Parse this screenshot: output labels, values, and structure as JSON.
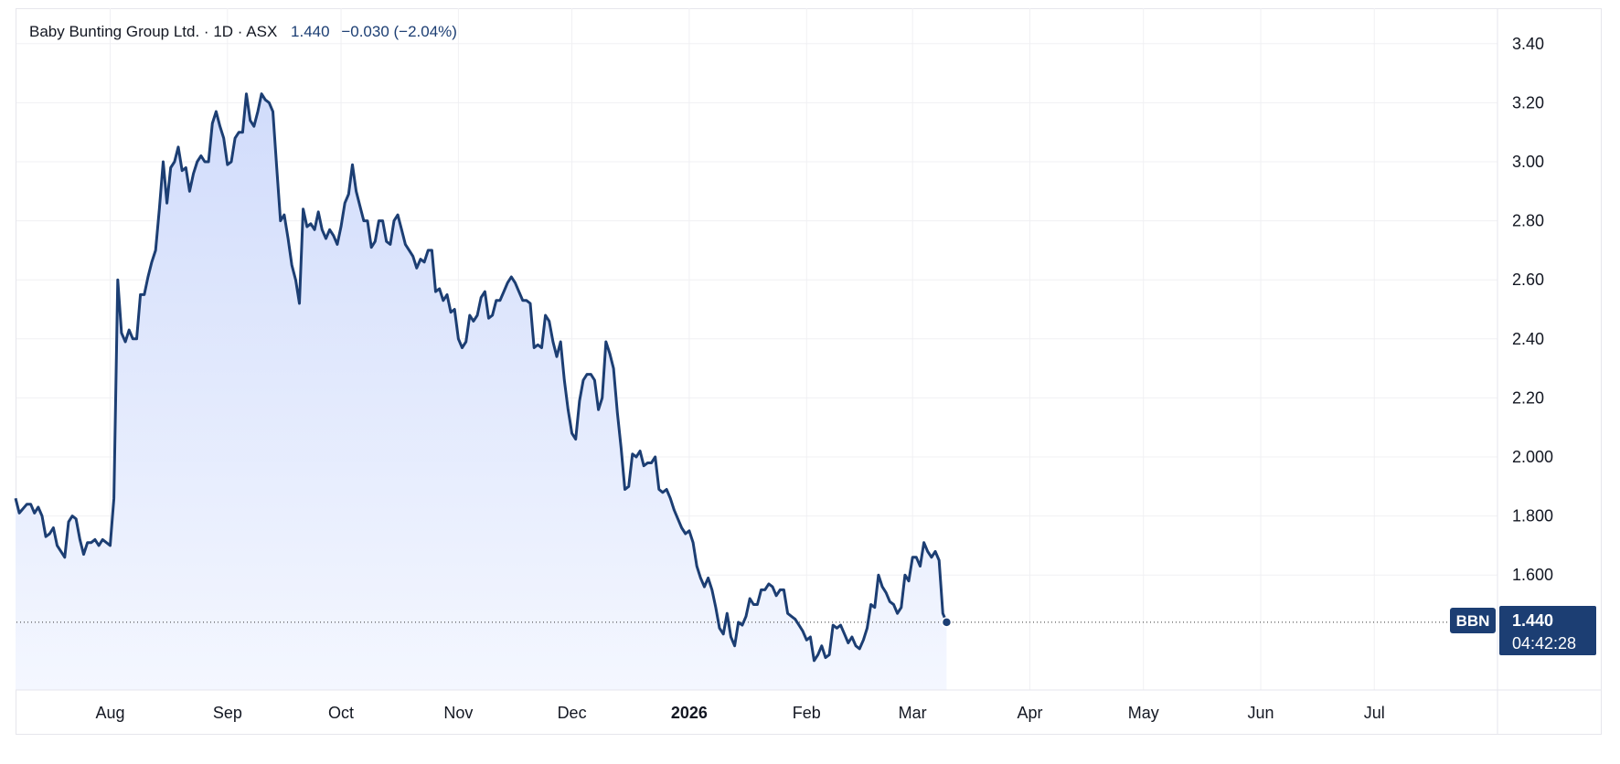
{
  "header": {
    "symbol_name": "Baby Bunting Group Ltd.",
    "interval": "1D",
    "exchange": "ASX",
    "separator": "·",
    "last_price": "1.440",
    "change": "−0.030 (−2.04%)"
  },
  "price_tag": {
    "ticker": "BBN",
    "price": "1.440",
    "countdown": "04:42:28"
  },
  "colors": {
    "line": "#1c3e73",
    "fill_top": "#d1dcfb",
    "fill_bottom": "#f4f7ff",
    "tag_bg": "#1c3e73"
  },
  "chart_data": {
    "type": "area",
    "title": "Baby Bunting Group Ltd. · 1D · ASX",
    "xlabel": "",
    "ylabel": "",
    "ylim": [
      1.25,
      3.45
    ],
    "y_ticks": [
      {
        "value": 3.4,
        "label": "3.40"
      },
      {
        "value": 3.2,
        "label": "3.20"
      },
      {
        "value": 3.0,
        "label": "3.00"
      },
      {
        "value": 2.8,
        "label": "2.80"
      },
      {
        "value": 2.6,
        "label": "2.60"
      },
      {
        "value": 2.4,
        "label": "2.40"
      },
      {
        "value": 2.2,
        "label": "2.20"
      },
      {
        "value": 2.0,
        "label": "2.000"
      },
      {
        "value": 1.8,
        "label": "1.800"
      },
      {
        "value": 1.6,
        "label": "1.600"
      }
    ],
    "x_ticks": [
      {
        "t": 22,
        "label": "Aug"
      },
      {
        "t": 53,
        "label": "Sep"
      },
      {
        "t": 83,
        "label": "Oct"
      },
      {
        "t": 114,
        "label": "Nov"
      },
      {
        "t": 144,
        "label": "Dec"
      },
      {
        "t": 175,
        "label": "2026",
        "bold": true
      },
      {
        "t": 206,
        "label": "Feb"
      },
      {
        "t": 234,
        "label": "Mar"
      },
      {
        "t": 265,
        "label": "Apr"
      },
      {
        "t": 295,
        "label": "May"
      },
      {
        "t": 326,
        "label": "Jun"
      },
      {
        "t": 356,
        "label": "Jul"
      }
    ],
    "t_range": [
      -3,
      366
    ],
    "last_value": 1.44,
    "series": [
      {
        "points": [
          [
            -3,
            1.86
          ],
          [
            -2,
            1.81
          ],
          [
            0,
            1.84
          ],
          [
            1,
            1.84
          ],
          [
            2,
            1.81
          ],
          [
            3,
            1.83
          ],
          [
            4,
            1.8
          ],
          [
            5,
            1.73
          ],
          [
            6,
            1.74
          ],
          [
            7,
            1.76
          ],
          [
            8,
            1.7
          ],
          [
            9,
            1.68
          ],
          [
            10,
            1.66
          ],
          [
            11,
            1.78
          ],
          [
            12,
            1.8
          ],
          [
            13,
            1.79
          ],
          [
            14,
            1.72
          ],
          [
            15,
            1.67
          ],
          [
            16,
            1.71
          ],
          [
            17,
            1.71
          ],
          [
            18,
            1.72
          ],
          [
            19,
            1.7
          ],
          [
            20,
            1.72
          ],
          [
            21,
            1.71
          ],
          [
            22,
            1.7
          ],
          [
            23,
            1.86
          ],
          [
            24,
            2.6
          ],
          [
            25,
            2.42
          ],
          [
            26,
            2.39
          ],
          [
            27,
            2.43
          ],
          [
            28,
            2.4
          ],
          [
            29,
            2.4
          ],
          [
            30,
            2.55
          ],
          [
            31,
            2.55
          ],
          [
            32,
            2.61
          ],
          [
            33,
            2.66
          ],
          [
            34,
            2.7
          ],
          [
            35,
            2.84
          ],
          [
            36,
            3.0
          ],
          [
            37,
            2.86
          ],
          [
            38,
            2.98
          ],
          [
            39,
            3.0
          ],
          [
            40,
            3.05
          ],
          [
            41,
            2.97
          ],
          [
            42,
            2.98
          ],
          [
            43,
            2.9
          ],
          [
            44,
            2.96
          ],
          [
            45,
            3.0
          ],
          [
            46,
            3.02
          ],
          [
            47,
            3.0
          ],
          [
            48,
            3.0
          ],
          [
            49,
            3.13
          ],
          [
            50,
            3.17
          ],
          [
            51,
            3.12
          ],
          [
            52,
            3.08
          ],
          [
            53,
            2.99
          ],
          [
            54,
            3.0
          ],
          [
            55,
            3.08
          ],
          [
            56,
            3.1
          ],
          [
            57,
            3.1
          ],
          [
            58,
            3.23
          ],
          [
            59,
            3.14
          ],
          [
            60,
            3.12
          ],
          [
            61,
            3.17
          ],
          [
            62,
            3.23
          ],
          [
            63,
            3.21
          ],
          [
            64,
            3.2
          ],
          [
            65,
            3.17
          ],
          [
            66,
            2.98
          ],
          [
            67,
            2.8
          ],
          [
            68,
            2.82
          ],
          [
            69,
            2.74
          ],
          [
            70,
            2.65
          ],
          [
            71,
            2.6
          ],
          [
            72,
            2.52
          ],
          [
            73,
            2.84
          ],
          [
            74,
            2.78
          ],
          [
            75,
            2.79
          ],
          [
            76,
            2.77
          ],
          [
            77,
            2.83
          ],
          [
            78,
            2.77
          ],
          [
            79,
            2.74
          ],
          [
            80,
            2.77
          ],
          [
            81,
            2.75
          ],
          [
            82,
            2.72
          ],
          [
            83,
            2.78
          ],
          [
            84,
            2.86
          ],
          [
            85,
            2.89
          ],
          [
            86,
            2.99
          ],
          [
            87,
            2.9
          ],
          [
            88,
            2.85
          ],
          [
            89,
            2.8
          ],
          [
            90,
            2.8
          ],
          [
            91,
            2.71
          ],
          [
            92,
            2.73
          ],
          [
            93,
            2.8
          ],
          [
            94,
            2.8
          ],
          [
            95,
            2.73
          ],
          [
            96,
            2.72
          ],
          [
            97,
            2.8
          ],
          [
            98,
            2.82
          ],
          [
            99,
            2.77
          ],
          [
            100,
            2.72
          ],
          [
            101,
            2.7
          ],
          [
            102,
            2.68
          ],
          [
            103,
            2.64
          ],
          [
            104,
            2.67
          ],
          [
            105,
            2.66
          ],
          [
            106,
            2.7
          ],
          [
            107,
            2.7
          ],
          [
            108,
            2.56
          ],
          [
            109,
            2.57
          ],
          [
            110,
            2.53
          ],
          [
            111,
            2.55
          ],
          [
            112,
            2.49
          ],
          [
            113,
            2.5
          ],
          [
            114,
            2.4
          ],
          [
            115,
            2.37
          ],
          [
            116,
            2.39
          ],
          [
            117,
            2.48
          ],
          [
            118,
            2.46
          ],
          [
            119,
            2.48
          ],
          [
            120,
            2.54
          ],
          [
            121,
            2.56
          ],
          [
            122,
            2.47
          ],
          [
            123,
            2.48
          ],
          [
            124,
            2.53
          ],
          [
            125,
            2.53
          ],
          [
            126,
            2.56
          ],
          [
            127,
            2.59
          ],
          [
            128,
            2.61
          ],
          [
            129,
            2.59
          ],
          [
            130,
            2.56
          ],
          [
            131,
            2.53
          ],
          [
            132,
            2.53
          ],
          [
            133,
            2.52
          ],
          [
            134,
            2.37
          ],
          [
            135,
            2.38
          ],
          [
            136,
            2.37
          ],
          [
            137,
            2.48
          ],
          [
            138,
            2.46
          ],
          [
            139,
            2.39
          ],
          [
            140,
            2.34
          ],
          [
            141,
            2.39
          ],
          [
            142,
            2.26
          ],
          [
            143,
            2.16
          ],
          [
            144,
            2.08
          ],
          [
            145,
            2.06
          ],
          [
            146,
            2.19
          ],
          [
            147,
            2.26
          ],
          [
            148,
            2.28
          ],
          [
            149,
            2.28
          ],
          [
            150,
            2.26
          ],
          [
            151,
            2.16
          ],
          [
            152,
            2.2
          ],
          [
            153,
            2.39
          ],
          [
            154,
            2.35
          ],
          [
            155,
            2.3
          ],
          [
            156,
            2.15
          ],
          [
            157,
            2.03
          ],
          [
            158,
            1.89
          ],
          [
            159,
            1.9
          ],
          [
            160,
            2.01
          ],
          [
            161,
            2.0
          ],
          [
            162,
            2.02
          ],
          [
            163,
            1.97
          ],
          [
            164,
            1.98
          ],
          [
            165,
            1.98
          ],
          [
            166,
            2.0
          ],
          [
            167,
            1.89
          ],
          [
            168,
            1.88
          ],
          [
            169,
            1.89
          ],
          [
            170,
            1.86
          ],
          [
            171,
            1.82
          ],
          [
            172,
            1.79
          ],
          [
            173,
            1.76
          ],
          [
            174,
            1.74
          ],
          [
            175,
            1.75
          ],
          [
            176,
            1.71
          ],
          [
            177,
            1.63
          ],
          [
            178,
            1.59
          ],
          [
            179,
            1.56
          ],
          [
            180,
            1.59
          ],
          [
            181,
            1.55
          ],
          [
            182,
            1.49
          ],
          [
            183,
            1.42
          ],
          [
            184,
            1.4
          ],
          [
            185,
            1.47
          ],
          [
            186,
            1.39
          ],
          [
            187,
            1.36
          ],
          [
            188,
            1.44
          ],
          [
            189,
            1.43
          ],
          [
            190,
            1.46
          ],
          [
            191,
            1.52
          ],
          [
            192,
            1.5
          ],
          [
            193,
            1.5
          ],
          [
            194,
            1.55
          ],
          [
            195,
            1.55
          ],
          [
            196,
            1.57
          ],
          [
            197,
            1.56
          ],
          [
            198,
            1.53
          ],
          [
            199,
            1.55
          ],
          [
            200,
            1.55
          ],
          [
            201,
            1.47
          ],
          [
            202,
            1.46
          ],
          [
            203,
            1.45
          ],
          [
            204,
            1.43
          ],
          [
            205,
            1.41
          ],
          [
            206,
            1.38
          ],
          [
            207,
            1.39
          ],
          [
            208,
            1.31
          ],
          [
            209,
            1.33
          ],
          [
            210,
            1.36
          ],
          [
            211,
            1.32
          ],
          [
            212,
            1.33
          ],
          [
            213,
            1.43
          ],
          [
            214,
            1.42
          ],
          [
            215,
            1.43
          ],
          [
            216,
            1.4
          ],
          [
            217,
            1.37
          ],
          [
            218,
            1.39
          ],
          [
            219,
            1.36
          ],
          [
            220,
            1.35
          ],
          [
            221,
            1.38
          ],
          [
            222,
            1.42
          ],
          [
            223,
            1.5
          ],
          [
            224,
            1.49
          ],
          [
            225,
            1.6
          ],
          [
            226,
            1.56
          ],
          [
            227,
            1.54
          ],
          [
            228,
            1.51
          ],
          [
            229,
            1.5
          ],
          [
            230,
            1.47
          ],
          [
            231,
            1.49
          ],
          [
            232,
            1.6
          ],
          [
            233,
            1.58
          ],
          [
            234,
            1.66
          ],
          [
            235,
            1.66
          ],
          [
            236,
            1.63
          ],
          [
            237,
            1.71
          ],
          [
            238,
            1.68
          ],
          [
            239,
            1.66
          ],
          [
            240,
            1.68
          ],
          [
            241,
            1.65
          ],
          [
            242,
            1.47
          ],
          [
            243,
            1.44
          ]
        ]
      }
    ]
  }
}
